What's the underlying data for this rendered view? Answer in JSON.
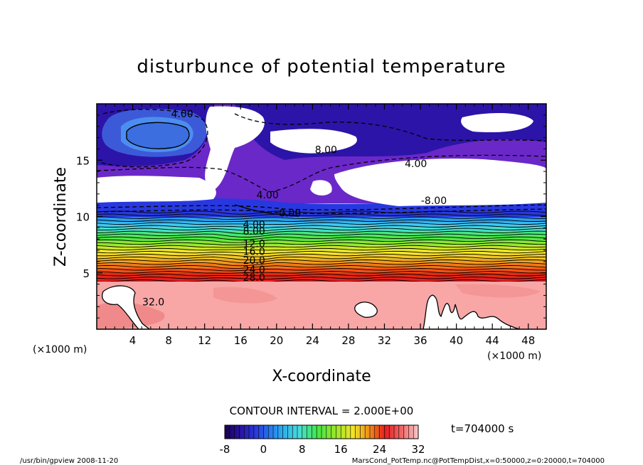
{
  "chart_data": {
    "type": "heatmap",
    "title": "disturbunce of potential temperature",
    "xlabel": "X-coordinate",
    "ylabel": "Z-coordinate",
    "x_unit": "(×1000 m)",
    "y_unit": "(×1000 m)",
    "xlim": [
      0,
      50
    ],
    "ylim": [
      0,
      20
    ],
    "x_ticks": [
      4,
      8,
      12,
      16,
      20,
      24,
      28,
      32,
      36,
      40,
      44,
      48
    ],
    "y_ticks": [
      5,
      10,
      15
    ],
    "contour_labels": [
      {
        "text": "4.00",
        "x": 9.5,
        "y": 18.8
      },
      {
        "text": "8.00",
        "x": 25.5,
        "y": 15.6
      },
      {
        "text": "4.00",
        "x": 35.5,
        "y": 14.4
      },
      {
        "text": "-8.00",
        "x": 37.5,
        "y": 11.1
      },
      {
        "text": "4.00",
        "x": 19,
        "y": 11.6
      },
      {
        "text": "0.00",
        "x": 21.5,
        "y": 10
      },
      {
        "text": "4.00",
        "x": 17.5,
        "y": 9
      },
      {
        "text": "8.00",
        "x": 17.5,
        "y": 8.4
      },
      {
        "text": "12.0",
        "x": 17.5,
        "y": 7.3
      },
      {
        "text": "16.0",
        "x": 17.5,
        "y": 6.6
      },
      {
        "text": "20.0",
        "x": 17.5,
        "y": 5.8
      },
      {
        "text": "24.0",
        "x": 17.5,
        "y": 5.0
      },
      {
        "text": "28.0",
        "x": 17.5,
        "y": 4.3
      },
      {
        "text": "32.0",
        "x": 6.3,
        "y": 2.1
      }
    ],
    "contour_interval_text": "CONTOUR INTERVAL = 2.000E+00",
    "colorbar": {
      "min": -8,
      "max": 32,
      "ticks": [
        -8,
        0,
        8,
        16,
        24,
        32
      ]
    },
    "time_label": "t=704000 s"
  },
  "footer": {
    "left": "/usr/bin/gpview   2008-11-20",
    "right": "MarsCond_PotTemp.nc@PotTempDist,x=0:50000,z=0:20000,t=704000"
  },
  "colors": {
    "cold_dark": "#0a0090",
    "cold_blue": "#3c5ad8",
    "light_blue": "#4cb4f0",
    "green": "#3cdc50",
    "yellow": "#f0e63c",
    "orange": "#f08c14",
    "red": "#e61e1e",
    "pink": "#f8a6a6"
  }
}
